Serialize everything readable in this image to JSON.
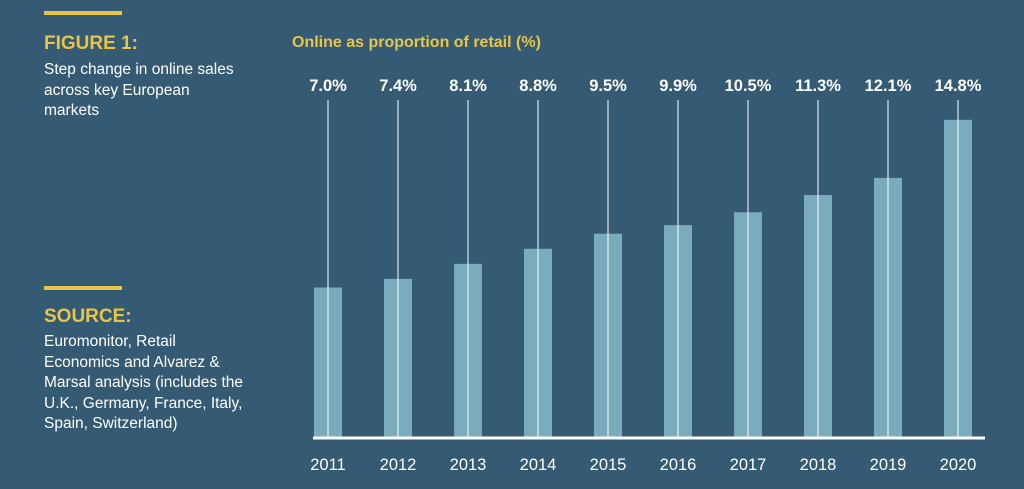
{
  "sidebar": {
    "figure_heading": "FIGURE 1:",
    "figure_caption": "Step change in online sales across key European markets",
    "source_heading": "SOURCE:",
    "source_text": "Euromonitor, Retail Economics and Alvarez & Marsal analysis (includes the U.K., Germany, France, Italy, Spain, Switzerland)"
  },
  "colors": {
    "background": "#345b73",
    "accent": "#e8c547",
    "bar": "#7aacbe",
    "text": "#ffffff"
  },
  "chart_data": {
    "type": "bar",
    "title": "Online as proportion of retail (%)",
    "categories": [
      "2011",
      "2012",
      "2013",
      "2014",
      "2015",
      "2016",
      "2017",
      "2018",
      "2019",
      "2020"
    ],
    "values": [
      7.0,
      7.4,
      8.1,
      8.8,
      9.5,
      9.9,
      10.5,
      11.3,
      12.1,
      14.8
    ],
    "value_labels": [
      "7.0%",
      "7.4%",
      "8.1%",
      "8.8%",
      "9.5%",
      "9.9%",
      "10.5%",
      "11.3%",
      "12.1%",
      "14.8%"
    ],
    "xlabel": "",
    "ylabel": "",
    "grid": false,
    "legend": "none"
  }
}
